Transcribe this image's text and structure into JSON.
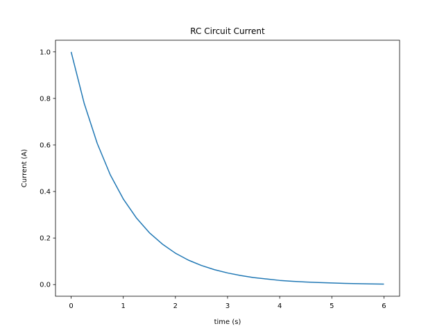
{
  "chart_data": {
    "type": "line",
    "title": "RC Circuit Current",
    "xlabel": "time (s)",
    "ylabel": "Current (A)",
    "xlim": [
      -0.3,
      6.3
    ],
    "ylim": [
      -0.05,
      1.05
    ],
    "xticks": [
      0,
      1,
      2,
      3,
      4,
      5,
      6
    ],
    "yticks": [
      0.0,
      0.2,
      0.4,
      0.6,
      0.8,
      1.0
    ],
    "xtick_labels": [
      "0",
      "1",
      "2",
      "3",
      "4",
      "5",
      "6"
    ],
    "ytick_labels": [
      "0.0",
      "0.2",
      "0.4",
      "0.6",
      "0.8",
      "1.0"
    ],
    "grid": false,
    "legend": false,
    "series": [
      {
        "color": "#1f77b4",
        "x": [
          0,
          0.25,
          0.5,
          0.75,
          1.0,
          1.25,
          1.5,
          1.75,
          2.0,
          2.25,
          2.5,
          2.75,
          3.0,
          3.25,
          3.5,
          3.75,
          4.0,
          4.25,
          4.5,
          4.75,
          5.0,
          5.25,
          5.5,
          5.75,
          6.0
        ],
        "y": [
          1.0,
          0.779,
          0.607,
          0.472,
          0.368,
          0.287,
          0.223,
          0.174,
          0.135,
          0.105,
          0.082,
          0.064,
          0.05,
          0.039,
          0.03,
          0.024,
          0.018,
          0.014,
          0.011,
          0.009,
          0.007,
          0.005,
          0.004,
          0.003,
          0.002
        ]
      }
    ]
  }
}
